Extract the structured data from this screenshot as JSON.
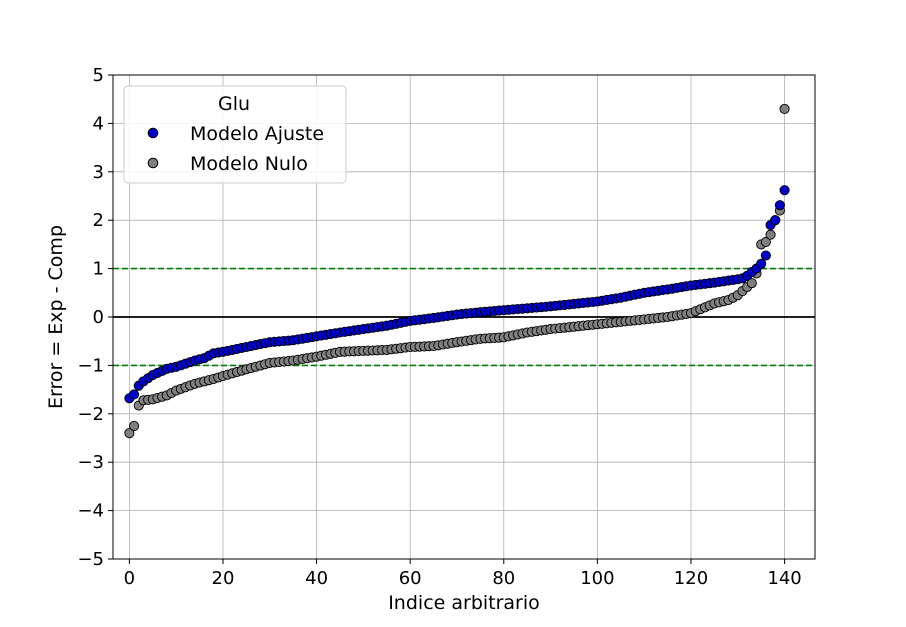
{
  "chart_data": {
    "type": "scatter",
    "xlabel": "Indice arbitrario",
    "ylabel": "Error = Exp - Comp",
    "xlim": [
      -3.5,
      146.5
    ],
    "ylim": [
      -5,
      5
    ],
    "xticks": [
      0,
      20,
      40,
      60,
      80,
      100,
      120,
      140
    ],
    "yticks": [
      -5,
      -4,
      -3,
      -2,
      -1,
      0,
      1,
      2,
      3,
      4,
      5
    ],
    "xtick_labels": [
      "0",
      "20",
      "40",
      "60",
      "80",
      "100",
      "120",
      "140"
    ],
    "ytick_labels": [
      "−5",
      "−4",
      "−3",
      "−2",
      "−1",
      "0",
      "1",
      "2",
      "3",
      "4",
      "5"
    ],
    "grid": true,
    "legend": {
      "title": "Glu",
      "position": "top-left"
    },
    "reference_lines": [
      {
        "y": 0,
        "color": "#000000",
        "style": "solid"
      },
      {
        "y": 1,
        "color": "#008000",
        "style": "dashed"
      },
      {
        "y": -1,
        "color": "#008000",
        "style": "dashed"
      }
    ],
    "series": [
      {
        "name": "Modelo Ajuste",
        "color": "#0000cc",
        "keypoints": [
          [
            0,
            -1.68
          ],
          [
            1,
            -1.6
          ],
          [
            2,
            -1.42
          ],
          [
            3,
            -1.33
          ],
          [
            5,
            -1.2
          ],
          [
            8,
            -1.07
          ],
          [
            10,
            -1.03
          ],
          [
            14,
            -0.9
          ],
          [
            16,
            -0.85
          ],
          [
            18,
            -0.75
          ],
          [
            20,
            -0.72
          ],
          [
            25,
            -0.62
          ],
          [
            30,
            -0.52
          ],
          [
            35,
            -0.48
          ],
          [
            40,
            -0.4
          ],
          [
            45,
            -0.32
          ],
          [
            50,
            -0.25
          ],
          [
            55,
            -0.18
          ],
          [
            60,
            -0.08
          ],
          [
            65,
            -0.02
          ],
          [
            70,
            0.05
          ],
          [
            75,
            0.1
          ],
          [
            80,
            0.14
          ],
          [
            85,
            0.18
          ],
          [
            90,
            0.22
          ],
          [
            95,
            0.27
          ],
          [
            100,
            0.32
          ],
          [
            105,
            0.4
          ],
          [
            110,
            0.5
          ],
          [
            115,
            0.57
          ],
          [
            120,
            0.65
          ],
          [
            125,
            0.71
          ],
          [
            130,
            0.78
          ],
          [
            131,
            0.8
          ],
          [
            132,
            0.85
          ],
          [
            133,
            0.93
          ],
          [
            134,
            1.0
          ],
          [
            135,
            1.1
          ],
          [
            136,
            1.27
          ],
          [
            137,
            1.9
          ],
          [
            138,
            2.0
          ],
          [
            140,
            2.62
          ]
        ]
      },
      {
        "name": "Modelo Nulo",
        "color": "#808080",
        "keypoints": [
          [
            0,
            -2.4
          ],
          [
            1,
            -2.25
          ],
          [
            2,
            -1.83
          ],
          [
            3,
            -1.72
          ],
          [
            5,
            -1.7
          ],
          [
            8,
            -1.62
          ],
          [
            10,
            -1.52
          ],
          [
            14,
            -1.38
          ],
          [
            18,
            -1.28
          ],
          [
            20,
            -1.22
          ],
          [
            25,
            -1.08
          ],
          [
            30,
            -0.95
          ],
          [
            35,
            -0.9
          ],
          [
            40,
            -0.82
          ],
          [
            45,
            -0.72
          ],
          [
            50,
            -0.7
          ],
          [
            55,
            -0.68
          ],
          [
            60,
            -0.62
          ],
          [
            65,
            -0.6
          ],
          [
            70,
            -0.52
          ],
          [
            75,
            -0.45
          ],
          [
            80,
            -0.42
          ],
          [
            85,
            -0.32
          ],
          [
            90,
            -0.25
          ],
          [
            95,
            -0.2
          ],
          [
            100,
            -0.15
          ],
          [
            105,
            -0.1
          ],
          [
            110,
            -0.05
          ],
          [
            115,
            0.0
          ],
          [
            120,
            0.08
          ],
          [
            125,
            0.28
          ],
          [
            128,
            0.35
          ],
          [
            130,
            0.45
          ],
          [
            132,
            0.62
          ],
          [
            133,
            0.7
          ],
          [
            134,
            0.9
          ],
          [
            135,
            1.5
          ],
          [
            136,
            1.55
          ],
          [
            137,
            1.7
          ],
          [
            138,
            2.0
          ],
          [
            139,
            2.2
          ],
          [
            140,
            4.3
          ]
        ]
      }
    ]
  }
}
